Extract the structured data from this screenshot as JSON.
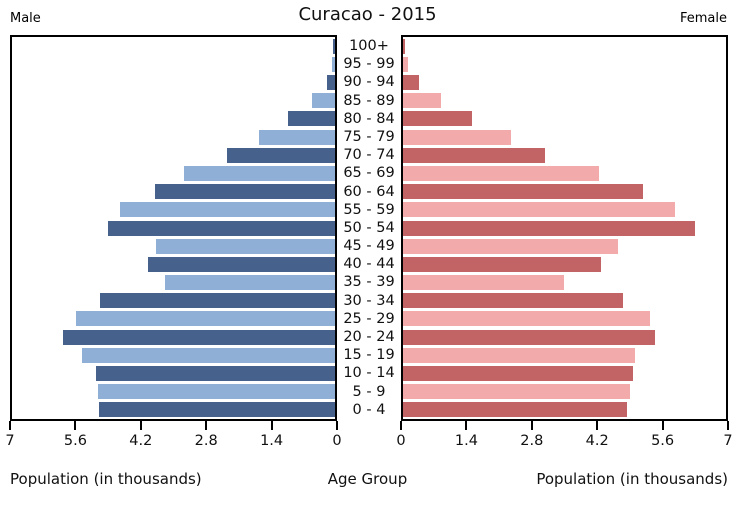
{
  "header": {
    "title": "Curacao - 2015",
    "left_label": "Male",
    "right_label": "Female"
  },
  "footer": {
    "left_axis_label": "Population (in thousands)",
    "center_label": "Age Group",
    "right_axis_label": "Population (in thousands)"
  },
  "chart_data": {
    "type": "bar",
    "variant": "population-pyramid",
    "title": "Curacao - 2015",
    "age_groups": [
      "100+",
      "95 - 99",
      "90 - 94",
      "85 - 89",
      "80 - 84",
      "75 - 79",
      "70 - 74",
      "65 - 69",
      "60 - 64",
      "55 - 59",
      "50 - 54",
      "45 - 49",
      "40 - 44",
      "35 - 39",
      "30 - 34",
      "25 - 29",
      "20 - 24",
      "15 - 19",
      "10 - 14",
      "5 - 9",
      "0 - 4"
    ],
    "series": [
      {
        "name": "Male",
        "side": "left",
        "unit": "thousands",
        "values": [
          0.04,
          0.06,
          0.18,
          0.49,
          1.02,
          1.65,
          2.34,
          3.28,
          3.91,
          4.67,
          4.93,
          3.89,
          4.06,
          3.69,
          5.1,
          5.62,
          5.9,
          5.49,
          5.19,
          5.14,
          5.11
        ]
      },
      {
        "name": "Female",
        "side": "right",
        "unit": "thousands",
        "values": [
          0.04,
          0.11,
          0.35,
          0.83,
          1.5,
          2.33,
          3.08,
          4.25,
          5.2,
          5.9,
          6.33,
          4.67,
          4.3,
          3.49,
          4.76,
          5.35,
          5.47,
          5.02,
          4.98,
          4.92,
          4.86
        ]
      }
    ],
    "x_axis": {
      "max": 7,
      "male_tick_labels": [
        "7",
        "5.6",
        "4.2",
        "2.8",
        "1.4",
        "0"
      ],
      "female_tick_labels": [
        "0",
        "1.4",
        "2.8",
        "4.2",
        "5.6",
        "7"
      ],
      "label": "Population (in thousands)"
    },
    "center_axis_label": "Age Group",
    "colors": {
      "male_dark": "#46618C",
      "male_light": "#8FAFD6",
      "female_dark": "#C26366",
      "female_light": "#F2AAAA",
      "alternation": "even rows (from top, 0-based) dark, odd rows light"
    },
    "grid": false,
    "legend": false
  }
}
